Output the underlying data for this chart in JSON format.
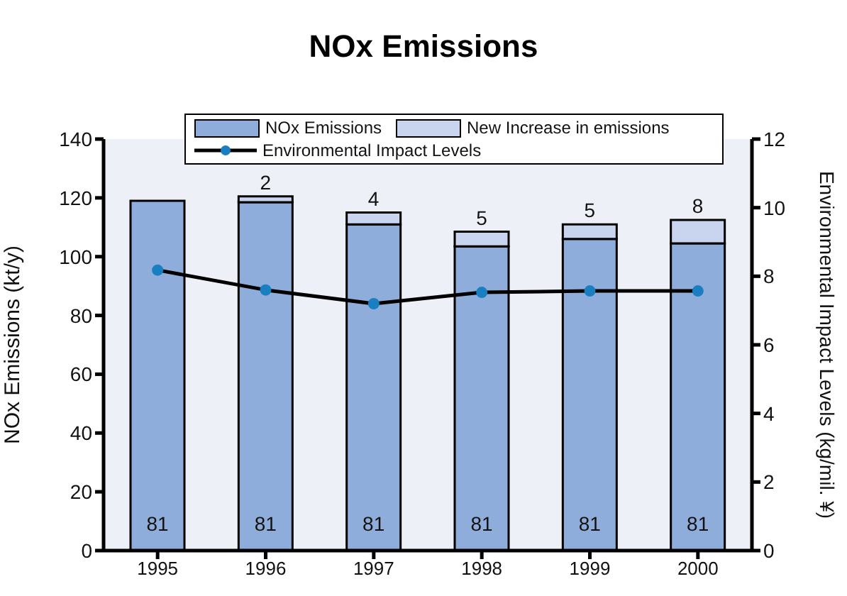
{
  "chart_data": {
    "type": "bar",
    "title": "NOx Emissions",
    "categories": [
      "1995",
      "1996",
      "1997",
      "1998",
      "1999",
      "2000"
    ],
    "stacked": true,
    "series": [
      {
        "name": "NOx Emissions",
        "color": "#8eaddb",
        "values": [
          119,
          118.5,
          111,
          103.5,
          106,
          104.5
        ]
      },
      {
        "name": "New Increase in emissions",
        "color": "#c9d5ee",
        "values": [
          null,
          2,
          4,
          5,
          5,
          8
        ],
        "value_labels": [
          null,
          "2",
          "4",
          "5",
          "5",
          "8"
        ]
      },
      {
        "name": "Environmental Impact Levels",
        "type": "line",
        "axis": "y2",
        "color": "#000000",
        "colors": [
          "#1a7fc1",
          "#1a7fc1",
          "#1a7fc1",
          "#1a7fc1",
          "#1a7fc1",
          "#1a7fc1"
        ],
        "values": [
          8.18,
          7.6,
          7.2,
          7.53,
          7.57,
          7.57
        ]
      }
    ],
    "annotations": [
      "81",
      "81",
      "81",
      "81",
      "81",
      "81"
    ],
    "ylabel": "NOx Emissions (kt/y)",
    "y2label": "Environmental Impact Levels (kg/mil. ¥)",
    "ylim": [
      0,
      140
    ],
    "yticks": [
      0,
      20,
      40,
      60,
      80,
      100,
      120,
      140
    ],
    "y2lim": [
      0,
      12
    ],
    "y2ticks": [
      0,
      2,
      4,
      6,
      8,
      10,
      12
    ],
    "grid": false,
    "legend": "top",
    "marker": "circle",
    "line_style": "solid"
  }
}
